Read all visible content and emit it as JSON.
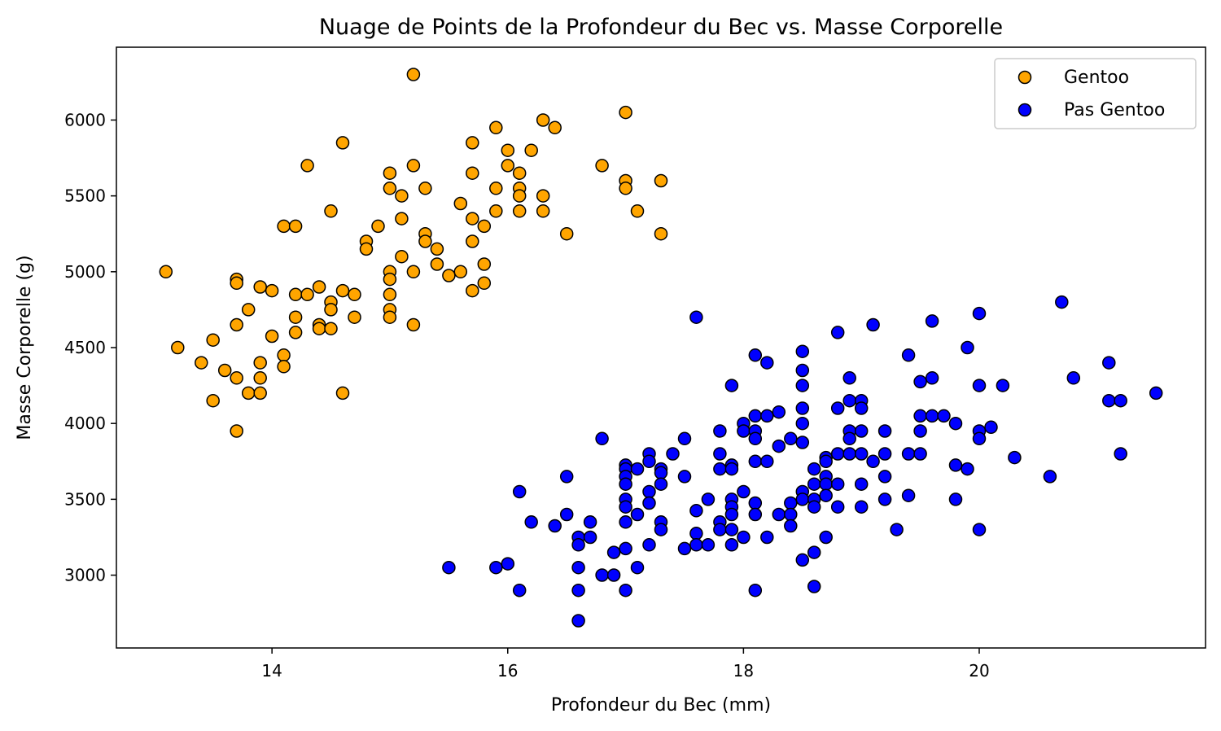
{
  "chart_data": {
    "type": "scatter",
    "title": "Nuage de Points de la Profondeur du Bec vs. Masse Corporelle",
    "xlabel": "Profondeur du Bec (mm)",
    "ylabel": "Masse Corporelle (g)",
    "xlim": [
      12.68,
      21.92
    ],
    "ylim": [
      2520,
      6480
    ],
    "xticks": [
      14,
      16,
      18,
      20
    ],
    "yticks": [
      3000,
      3500,
      4000,
      4500,
      5000,
      5500,
      6000
    ],
    "grid": false,
    "legend_position": "top-right",
    "series": [
      {
        "name": "Gentoo",
        "color": "#FFA500",
        "edge_color": "#000000",
        "points": [
          [
            13.1,
            5000
          ],
          [
            13.2,
            4500
          ],
          [
            13.4,
            4400
          ],
          [
            13.5,
            4550
          ],
          [
            13.5,
            4150
          ],
          [
            13.6,
            4350
          ],
          [
            13.7,
            4950
          ],
          [
            13.7,
            4925
          ],
          [
            13.7,
            4650
          ],
          [
            13.7,
            4300
          ],
          [
            13.7,
            3950
          ],
          [
            13.8,
            4750
          ],
          [
            13.8,
            4200
          ],
          [
            13.9,
            4900
          ],
          [
            13.9,
            4400
          ],
          [
            13.9,
            4300
          ],
          [
            13.9,
            4200
          ],
          [
            14.0,
            4875
          ],
          [
            14.0,
            4575
          ],
          [
            14.1,
            5300
          ],
          [
            14.1,
            4450
          ],
          [
            14.1,
            4375
          ],
          [
            14.2,
            5300
          ],
          [
            14.2,
            4850
          ],
          [
            14.2,
            4700
          ],
          [
            14.2,
            4600
          ],
          [
            14.3,
            5700
          ],
          [
            14.3,
            4850
          ],
          [
            14.4,
            4900
          ],
          [
            14.4,
            4650
          ],
          [
            14.4,
            4625
          ],
          [
            14.5,
            5400
          ],
          [
            14.5,
            4800
          ],
          [
            14.5,
            4750
          ],
          [
            14.5,
            4625
          ],
          [
            14.6,
            5850
          ],
          [
            14.6,
            4875
          ],
          [
            14.6,
            4200
          ],
          [
            14.7,
            4850
          ],
          [
            14.7,
            4700
          ],
          [
            14.8,
            5200
          ],
          [
            14.8,
            5150
          ],
          [
            14.9,
            5300
          ],
          [
            15.0,
            5650
          ],
          [
            15.0,
            5550
          ],
          [
            15.0,
            5000
          ],
          [
            15.0,
            4950
          ],
          [
            15.0,
            4850
          ],
          [
            15.0,
            4750
          ],
          [
            15.0,
            4700
          ],
          [
            15.1,
            5500
          ],
          [
            15.1,
            5350
          ],
          [
            15.1,
            5100
          ],
          [
            15.2,
            6300
          ],
          [
            15.2,
            5700
          ],
          [
            15.2,
            5000
          ],
          [
            15.2,
            4650
          ],
          [
            15.3,
            5550
          ],
          [
            15.3,
            5250
          ],
          [
            15.3,
            5200
          ],
          [
            15.4,
            5150
          ],
          [
            15.4,
            5050
          ],
          [
            15.5,
            4975
          ],
          [
            15.6,
            5450
          ],
          [
            15.6,
            5000
          ],
          [
            15.7,
            5850
          ],
          [
            15.7,
            5650
          ],
          [
            15.7,
            5350
          ],
          [
            15.7,
            5200
          ],
          [
            15.7,
            4875
          ],
          [
            15.8,
            5300
          ],
          [
            15.8,
            5050
          ],
          [
            15.8,
            4925
          ],
          [
            15.9,
            5950
          ],
          [
            15.9,
            5550
          ],
          [
            15.9,
            5400
          ],
          [
            16.0,
            5800
          ],
          [
            16.0,
            5700
          ],
          [
            16.1,
            5650
          ],
          [
            16.1,
            5550
          ],
          [
            16.1,
            5500
          ],
          [
            16.1,
            5400
          ],
          [
            16.2,
            5800
          ],
          [
            16.3,
            6000
          ],
          [
            16.3,
            5500
          ],
          [
            16.3,
            5400
          ],
          [
            16.4,
            5950
          ],
          [
            16.5,
            5250
          ],
          [
            16.8,
            5700
          ],
          [
            17.0,
            6050
          ],
          [
            17.0,
            5600
          ],
          [
            17.0,
            5550
          ],
          [
            17.1,
            5400
          ],
          [
            17.3,
            5600
          ],
          [
            17.3,
            5250
          ]
        ]
      },
      {
        "name": "Pas Gentoo",
        "color": "#0000FF",
        "edge_color": "#000000",
        "points": [
          [
            15.5,
            3050
          ],
          [
            15.9,
            3050
          ],
          [
            16.0,
            3075
          ],
          [
            16.1,
            3550
          ],
          [
            16.1,
            2900
          ],
          [
            16.2,
            3350
          ],
          [
            16.4,
            3325
          ],
          [
            16.5,
            3650
          ],
          [
            16.5,
            3400
          ],
          [
            16.6,
            3250
          ],
          [
            16.6,
            3200
          ],
          [
            16.6,
            3050
          ],
          [
            16.6,
            2900
          ],
          [
            16.6,
            2700
          ],
          [
            16.7,
            3350
          ],
          [
            16.7,
            3250
          ],
          [
            16.8,
            3900
          ],
          [
            16.8,
            3000
          ],
          [
            16.9,
            3150
          ],
          [
            16.9,
            3000
          ],
          [
            17.0,
            3725
          ],
          [
            17.0,
            3700
          ],
          [
            17.0,
            3650
          ],
          [
            17.0,
            3600
          ],
          [
            17.0,
            3500
          ],
          [
            17.0,
            3450
          ],
          [
            17.0,
            3350
          ],
          [
            17.0,
            3175
          ],
          [
            17.0,
            2900
          ],
          [
            17.1,
            3700
          ],
          [
            17.1,
            3400
          ],
          [
            17.1,
            3050
          ],
          [
            17.2,
            3800
          ],
          [
            17.2,
            3750
          ],
          [
            17.2,
            3550
          ],
          [
            17.2,
            3475
          ],
          [
            17.2,
            3200
          ],
          [
            17.3,
            3700
          ],
          [
            17.3,
            3675
          ],
          [
            17.3,
            3600
          ],
          [
            17.3,
            3350
          ],
          [
            17.3,
            3300
          ],
          [
            17.4,
            3800
          ],
          [
            17.5,
            3900
          ],
          [
            17.5,
            3650
          ],
          [
            17.5,
            3175
          ],
          [
            17.6,
            4700
          ],
          [
            17.6,
            3425
          ],
          [
            17.6,
            3275
          ],
          [
            17.6,
            3200
          ],
          [
            17.7,
            3500
          ],
          [
            17.7,
            3200
          ],
          [
            17.8,
            3950
          ],
          [
            17.8,
            3800
          ],
          [
            17.8,
            3700
          ],
          [
            17.8,
            3350
          ],
          [
            17.8,
            3300
          ],
          [
            17.9,
            4250
          ],
          [
            17.9,
            3725
          ],
          [
            17.9,
            3700
          ],
          [
            17.9,
            3500
          ],
          [
            17.9,
            3450
          ],
          [
            17.9,
            3400
          ],
          [
            17.9,
            3300
          ],
          [
            17.9,
            3200
          ],
          [
            18.0,
            4000
          ],
          [
            18.0,
            3950
          ],
          [
            18.0,
            3550
          ],
          [
            18.0,
            3250
          ],
          [
            18.1,
            4450
          ],
          [
            18.1,
            4050
          ],
          [
            18.1,
            3950
          ],
          [
            18.1,
            3900
          ],
          [
            18.1,
            3750
          ],
          [
            18.1,
            3475
          ],
          [
            18.1,
            3400
          ],
          [
            18.1,
            2900
          ],
          [
            18.2,
            4400
          ],
          [
            18.2,
            4050
          ],
          [
            18.2,
            3750
          ],
          [
            18.2,
            3250
          ],
          [
            18.3,
            4075
          ],
          [
            18.3,
            3850
          ],
          [
            18.3,
            3400
          ],
          [
            18.4,
            3900
          ],
          [
            18.4,
            3475
          ],
          [
            18.4,
            3400
          ],
          [
            18.4,
            3325
          ],
          [
            18.5,
            4475
          ],
          [
            18.5,
            4350
          ],
          [
            18.5,
            4250
          ],
          [
            18.5,
            4100
          ],
          [
            18.5,
            4000
          ],
          [
            18.5,
            3875
          ],
          [
            18.5,
            3550
          ],
          [
            18.5,
            3500
          ],
          [
            18.5,
            3100
          ],
          [
            18.6,
            3700
          ],
          [
            18.6,
            3600
          ],
          [
            18.6,
            3500
          ],
          [
            18.6,
            3450
          ],
          [
            18.6,
            3150
          ],
          [
            18.6,
            2925
          ],
          [
            18.7,
            3775
          ],
          [
            18.7,
            3750
          ],
          [
            18.7,
            3650
          ],
          [
            18.7,
            3600
          ],
          [
            18.7,
            3525
          ],
          [
            18.7,
            3250
          ],
          [
            18.8,
            4600
          ],
          [
            18.8,
            4100
          ],
          [
            18.8,
            3800
          ],
          [
            18.8,
            3600
          ],
          [
            18.8,
            3450
          ],
          [
            18.9,
            4300
          ],
          [
            18.9,
            4150
          ],
          [
            18.9,
            3950
          ],
          [
            18.9,
            3900
          ],
          [
            18.9,
            3800
          ],
          [
            19.0,
            4150
          ],
          [
            19.0,
            4100
          ],
          [
            19.0,
            3950
          ],
          [
            19.0,
            3800
          ],
          [
            19.0,
            3600
          ],
          [
            19.0,
            3450
          ],
          [
            19.1,
            4650
          ],
          [
            19.1,
            3750
          ],
          [
            19.2,
            3950
          ],
          [
            19.2,
            3800
          ],
          [
            19.2,
            3650
          ],
          [
            19.2,
            3500
          ],
          [
            19.3,
            3300
          ],
          [
            19.4,
            4450
          ],
          [
            19.4,
            3800
          ],
          [
            19.4,
            3525
          ],
          [
            19.5,
            4275
          ],
          [
            19.5,
            4050
          ],
          [
            19.5,
            3950
          ],
          [
            19.5,
            3800
          ],
          [
            19.6,
            4675
          ],
          [
            19.6,
            4300
          ],
          [
            19.6,
            4050
          ],
          [
            19.7,
            4050
          ],
          [
            19.8,
            4000
          ],
          [
            19.8,
            3725
          ],
          [
            19.8,
            3500
          ],
          [
            19.9,
            4500
          ],
          [
            19.9,
            3700
          ],
          [
            20.0,
            4725
          ],
          [
            20.0,
            4250
          ],
          [
            20.0,
            3950
          ],
          [
            20.0,
            3900
          ],
          [
            20.0,
            3300
          ],
          [
            20.1,
            3975
          ],
          [
            20.2,
            4250
          ],
          [
            20.3,
            3775
          ],
          [
            20.6,
            3650
          ],
          [
            20.7,
            4800
          ],
          [
            20.8,
            4300
          ],
          [
            21.1,
            4400
          ],
          [
            21.1,
            4150
          ],
          [
            21.2,
            4150
          ],
          [
            21.2,
            3800
          ],
          [
            21.5,
            4200
          ]
        ]
      }
    ]
  }
}
